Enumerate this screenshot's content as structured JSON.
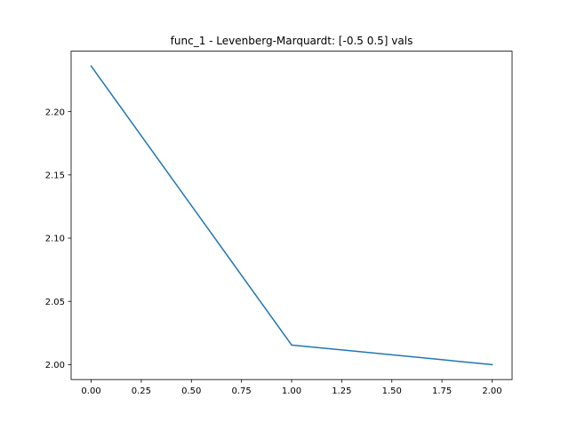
{
  "chart_data": {
    "type": "line",
    "title": "func_1 - Levenberg-Marquardt: [-0.5  0.5] vals",
    "xlabel": "",
    "ylabel": "",
    "xlim": [
      -0.1,
      2.1
    ],
    "ylim": [
      1.9882,
      2.2478
    ],
    "x_ticks": [
      0.0,
      0.25,
      0.5,
      0.75,
      1.0,
      1.25,
      1.5,
      1.75,
      2.0
    ],
    "x_tick_labels": [
      "0.00",
      "0.25",
      "0.50",
      "0.75",
      "1.00",
      "1.25",
      "1.50",
      "1.75",
      "2.00"
    ],
    "y_ticks": [
      2.0,
      2.05,
      2.1,
      2.15,
      2.2
    ],
    "y_tick_labels": [
      "2.00",
      "2.05",
      "2.10",
      "2.15",
      "2.20"
    ],
    "grid": false,
    "legend": "none",
    "series": [
      {
        "x": [
          0,
          1,
          2
        ],
        "values": [
          2.236,
          2.0155,
          2.0
        ],
        "color": "#1f77b4"
      }
    ]
  }
}
